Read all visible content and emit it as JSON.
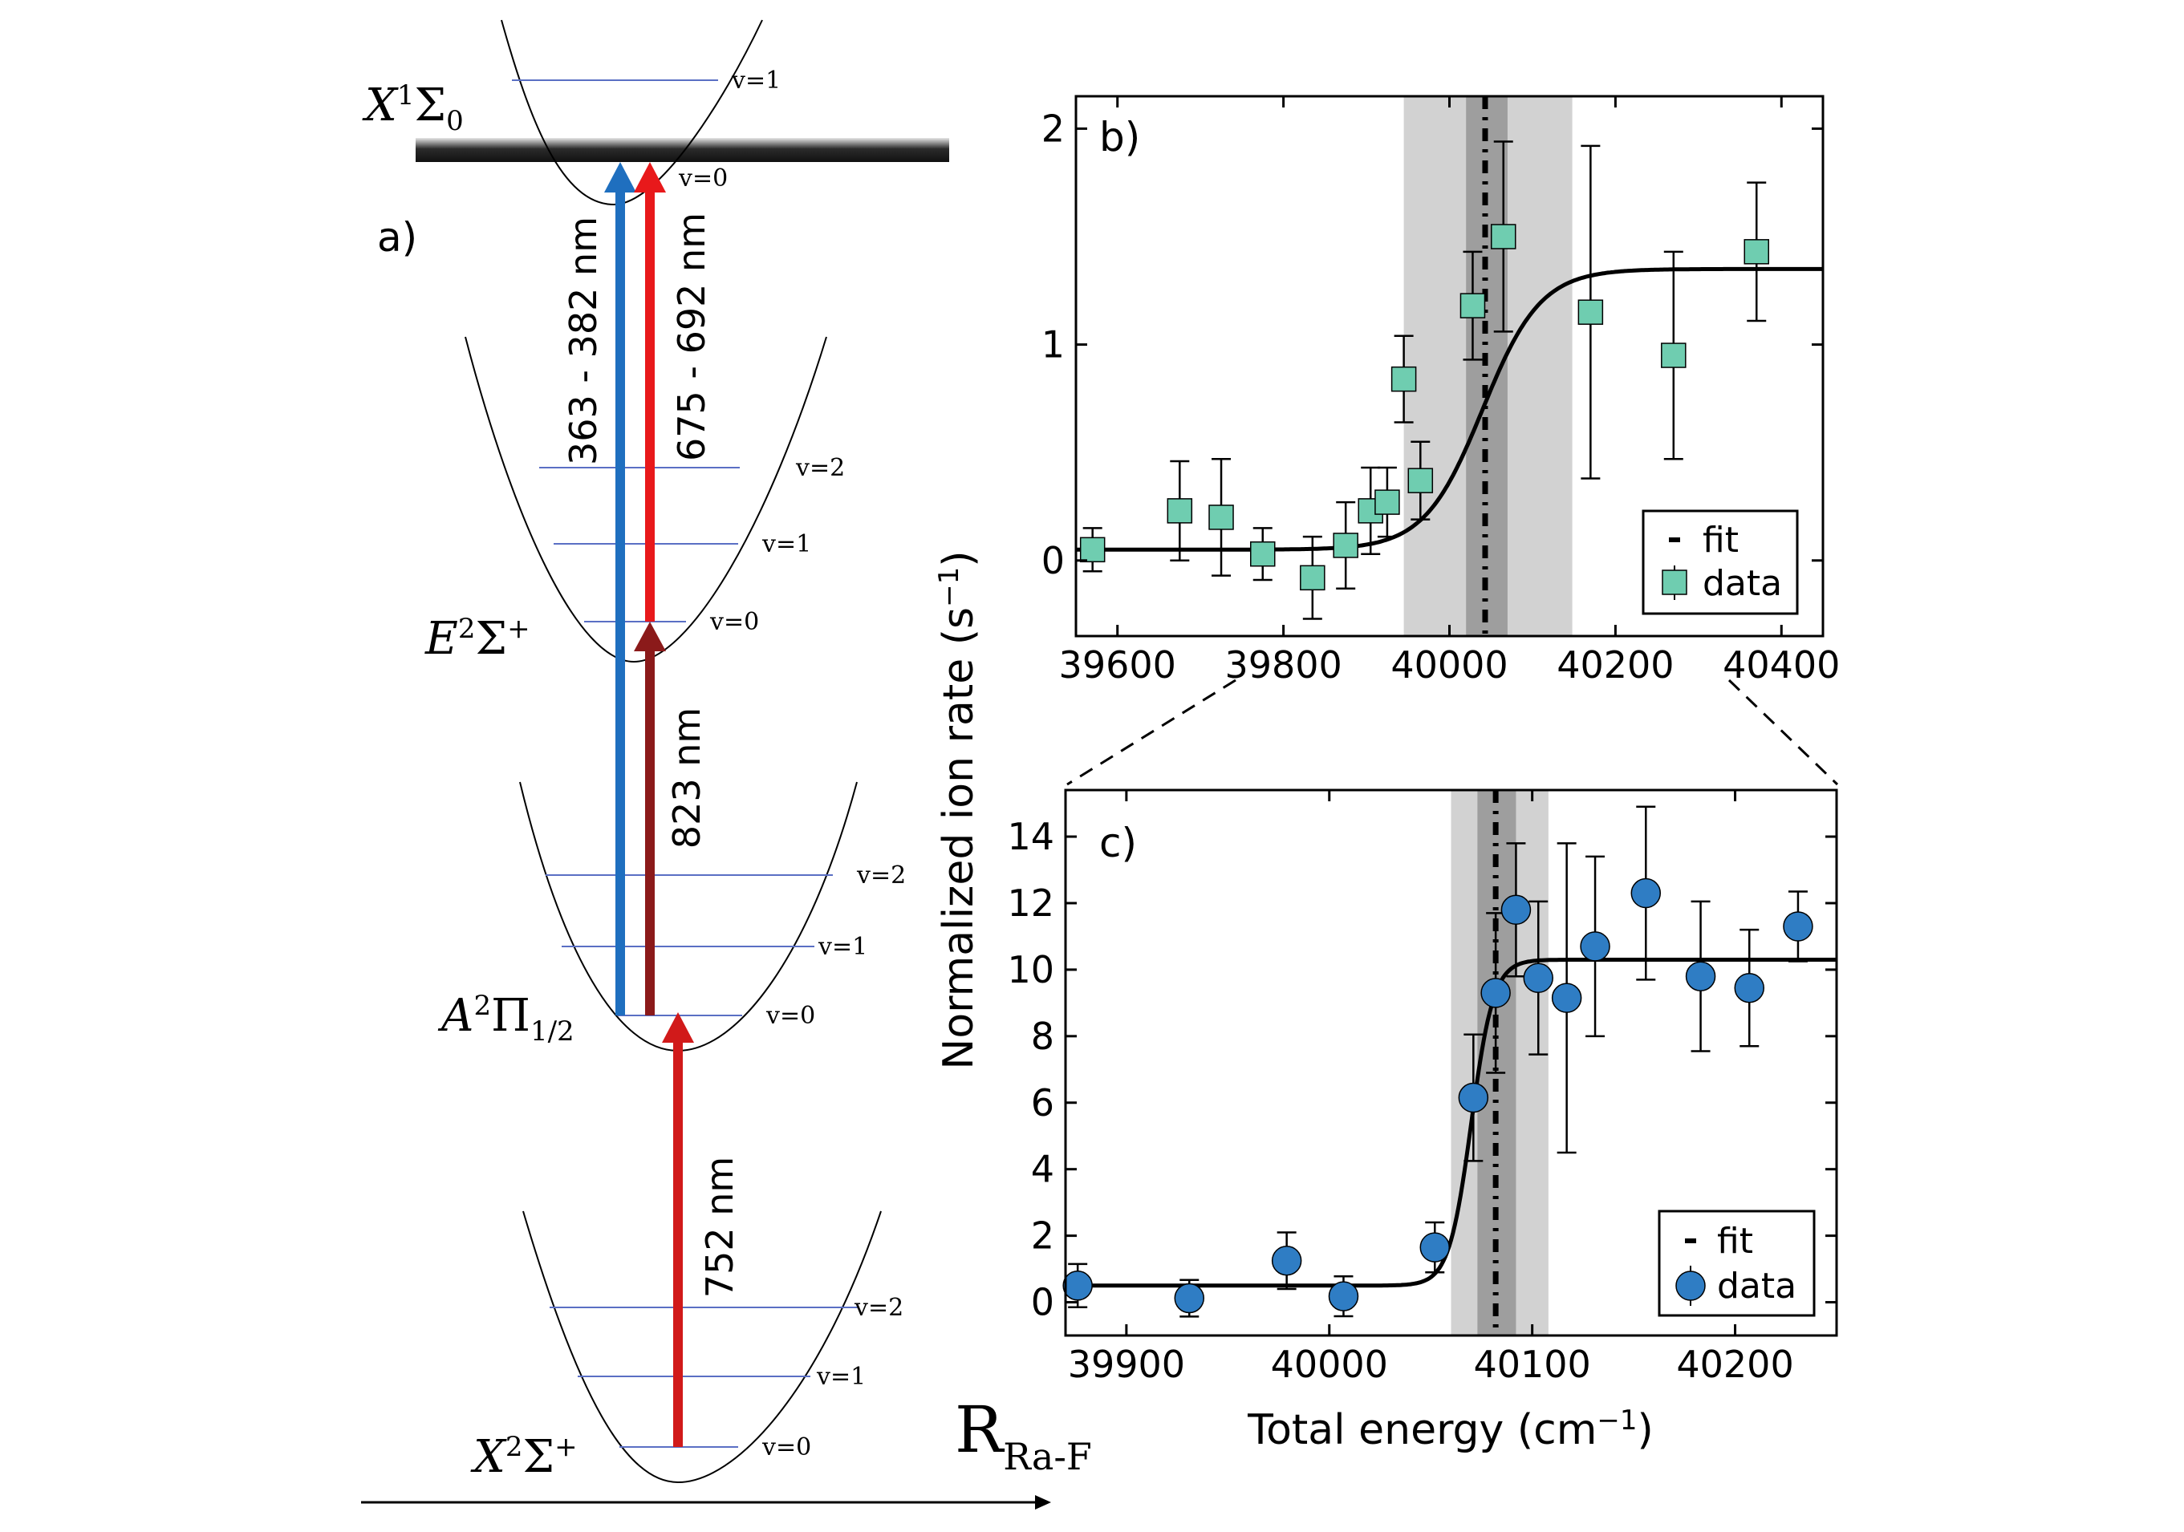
{
  "panel_a": {
    "label": "a)",
    "states": [
      {
        "id": "X2",
        "label": "X",
        "sup": "2",
        "greek": "Σ",
        "greek_sup": "+",
        "sub": ""
      },
      {
        "id": "A2",
        "label": "A",
        "sup": "2",
        "greek": "Π",
        "greek_sup": "",
        "sub": "1/2"
      },
      {
        "id": "E2",
        "label": "E",
        "sup": "2",
        "greek": "Σ",
        "greek_sup": "+",
        "sub": ""
      },
      {
        "id": "X1",
        "label": "X",
        "sup": "1",
        "greek": "Σ",
        "greek_sup": "",
        "sub": "0"
      }
    ],
    "vib_labels": [
      "v=0",
      "v=1",
      "v=2"
    ],
    "transitions": [
      {
        "id": "t752",
        "label": "752 nm",
        "color": "#d11a1a"
      },
      {
        "id": "t823",
        "label": "823 nm",
        "color": "#8b1a1a"
      },
      {
        "id": "t363",
        "label": "363 - 382 nm",
        "color": "#1f6fbf"
      },
      {
        "id": "t675",
        "label": "675 - 692 nm",
        "color": "#e8191b"
      }
    ],
    "coordinate_label": "R",
    "coordinate_sub": "Ra-F"
  },
  "y_axis_title": "Normalized ion rate (s",
  "y_axis_title_sup": "−1",
  "y_axis_title_end": ")",
  "chart_data": [
    {
      "id": "b",
      "type": "scatter",
      "panel_label": "b)",
      "xlim": [
        39550,
        40450
      ],
      "ylim": [
        -0.35,
        2.15
      ],
      "x_ticks": [
        39600,
        39800,
        40000,
        40200,
        40400
      ],
      "y_ticks": [
        0,
        1,
        2
      ],
      "marker": "square",
      "marker_color": "#6fcdb0",
      "grid": false,
      "legend_position": "bottom-right",
      "legend": [
        "fit",
        "data"
      ],
      "fit": {
        "center": 40040,
        "width": 35,
        "low": 0.05,
        "high": 1.35
      },
      "fit_line_x": 40043,
      "bands": [
        {
          "from": 39945,
          "to": 40148,
          "shade": "light"
        },
        {
          "from": 40020,
          "to": 40070,
          "shade": "dark"
        }
      ],
      "series": [
        {
          "name": "data",
          "points": [
            {
              "x": 39570,
              "y": 0.05,
              "err": 0.1
            },
            {
              "x": 39675,
              "y": 0.23,
              "err": 0.23
            },
            {
              "x": 39725,
              "y": 0.2,
              "err": 0.27
            },
            {
              "x": 39775,
              "y": 0.03,
              "err": 0.12
            },
            {
              "x": 39835,
              "y": -0.08,
              "err": 0.19
            },
            {
              "x": 39875,
              "y": 0.07,
              "err": 0.2
            },
            {
              "x": 39905,
              "y": 0.23,
              "err": 0.2
            },
            {
              "x": 39925,
              "y": 0.27,
              "err": 0.16
            },
            {
              "x": 39945,
              "y": 0.84,
              "err": 0.2
            },
            {
              "x": 39965,
              "y": 0.37,
              "err": 0.18
            },
            {
              "x": 40028,
              "y": 1.18,
              "err": 0.25
            },
            {
              "x": 40065,
              "y": 1.5,
              "err": 0.44
            },
            {
              "x": 40170,
              "y": 1.15,
              "err": 0.77
            },
            {
              "x": 40270,
              "y": 0.95,
              "err": 0.48
            },
            {
              "x": 40370,
              "y": 1.43,
              "err": 0.32
            }
          ]
        }
      ]
    },
    {
      "id": "c",
      "type": "scatter",
      "panel_label": "c)",
      "xlim": [
        39870,
        40250
      ],
      "ylim": [
        -1.0,
        15.4
      ],
      "x_ticks": [
        39900,
        40000,
        40100,
        40200
      ],
      "y_ticks": [
        0,
        2,
        4,
        6,
        8,
        10,
        12,
        14
      ],
      "marker": "circle",
      "marker_color": "#2f7dc4",
      "grid": false,
      "legend_position": "bottom-right",
      "legend": [
        "fit",
        "data"
      ],
      "xlabel": "Total energy (cm",
      "xlabel_sup": "−1",
      "xlabel_end": ")",
      "fit": {
        "center": 40070,
        "width": 5.5,
        "low": 0.5,
        "high": 10.3
      },
      "fit_line_x": 40082,
      "bands": [
        {
          "from": 40060,
          "to": 40108,
          "shade": "light"
        },
        {
          "from": 40073,
          "to": 40092,
          "shade": "dark"
        }
      ],
      "series": [
        {
          "name": "data",
          "points": [
            {
              "x": 39876,
              "y": 0.5,
              "err": 0.65
            },
            {
              "x": 39931,
              "y": 0.12,
              "err": 0.55
            },
            {
              "x": 39979,
              "y": 1.25,
              "err": 0.85
            },
            {
              "x": 40007,
              "y": 0.18,
              "err": 0.6
            },
            {
              "x": 40052,
              "y": 1.65,
              "err": 0.75
            },
            {
              "x": 40071,
              "y": 6.15,
              "err": 1.9
            },
            {
              "x": 40082,
              "y": 9.3,
              "err": 2.4
            },
            {
              "x": 40092,
              "y": 11.8,
              "err": 2.0
            },
            {
              "x": 40103,
              "y": 9.75,
              "err": 2.3
            },
            {
              "x": 40117,
              "y": 9.15,
              "err": 4.65
            },
            {
              "x": 40131,
              "y": 10.7,
              "err": 2.7
            },
            {
              "x": 40156,
              "y": 12.3,
              "err": 2.6
            },
            {
              "x": 40183,
              "y": 9.8,
              "err": 2.25
            },
            {
              "x": 40207,
              "y": 9.45,
              "err": 1.75
            },
            {
              "x": 40231,
              "y": 11.3,
              "err": 1.05
            }
          ]
        }
      ]
    }
  ]
}
